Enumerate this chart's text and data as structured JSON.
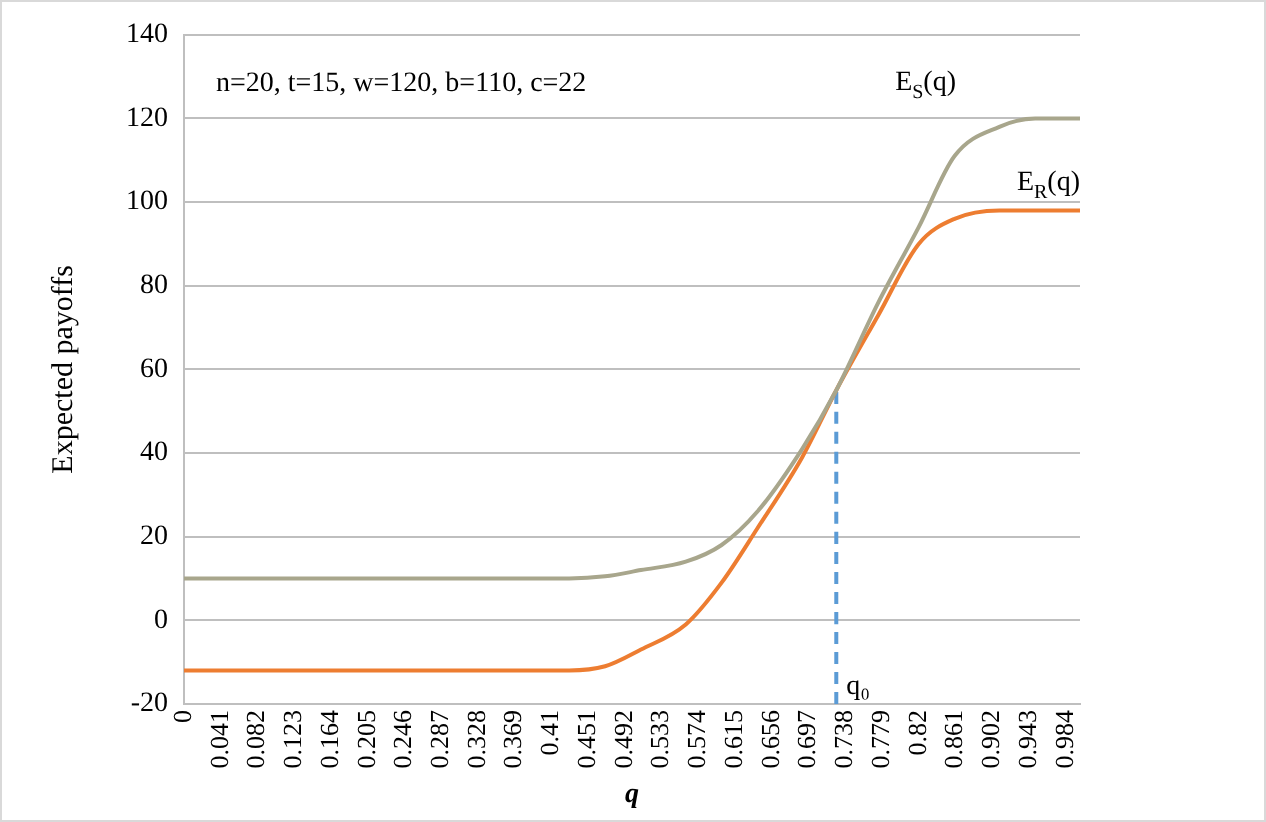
{
  "chart_data": {
    "type": "line",
    "xlabel": "q",
    "ylabel": "Expected payoffs",
    "x": [
      0,
      0.1,
      0.2,
      0.3,
      0.4,
      0.43,
      0.47,
      0.51,
      0.56,
      0.6,
      0.64,
      0.69,
      0.728,
      0.775,
      0.82,
      0.86,
      0.91,
      0.95,
      1.0
    ],
    "series": [
      {
        "name": "E$_{S}$(q)",
        "color": "#a8a68c",
        "values": [
          10,
          10,
          10,
          10,
          10,
          10,
          10.5,
          12,
          14,
          18,
          26,
          41,
          55,
          76,
          94,
          111,
          118,
          120,
          120
        ]
      },
      {
        "name": "E$_{R}$(q)",
        "color": "#ed7d31",
        "values": [
          -12,
          -12,
          -12,
          -12,
          -12,
          -12,
          -11,
          -7,
          -1,
          9,
          22,
          39,
          55,
          73,
          90,
          96,
          98,
          98,
          98
        ]
      },
      {
        "type": "line",
        "x": [
          0.728,
          0.728
        ],
        "values": [
          -20,
          55
        ],
        "color": "#5b9bd5",
        "line_style": "dashed"
      }
    ],
    "annotations": [
      "n=20, t=15, w=120, b=110, c=22",
      {
        "text": "q₀",
        "x": 0.728,
        "y": -20
      }
    ],
    "xlim": [
      0,
      1
    ],
    "xticks": [
      0,
      0.041,
      0.082,
      0.123,
      0.164,
      0.205,
      0.246,
      0.287,
      0.328,
      0.369,
      0.41,
      0.451,
      0.492,
      0.533,
      0.574,
      0.615,
      0.656,
      0.697,
      0.738,
      0.779,
      0.82,
      0.861,
      0.902,
      0.943,
      0.984
    ],
    "ylim": [
      -20,
      140
    ],
    "yticks": [
      -20,
      0,
      20,
      40,
      60,
      80,
      100,
      120,
      140
    ],
    "grid": "y",
    "marker": "none",
    "line_style": "solid"
  }
}
